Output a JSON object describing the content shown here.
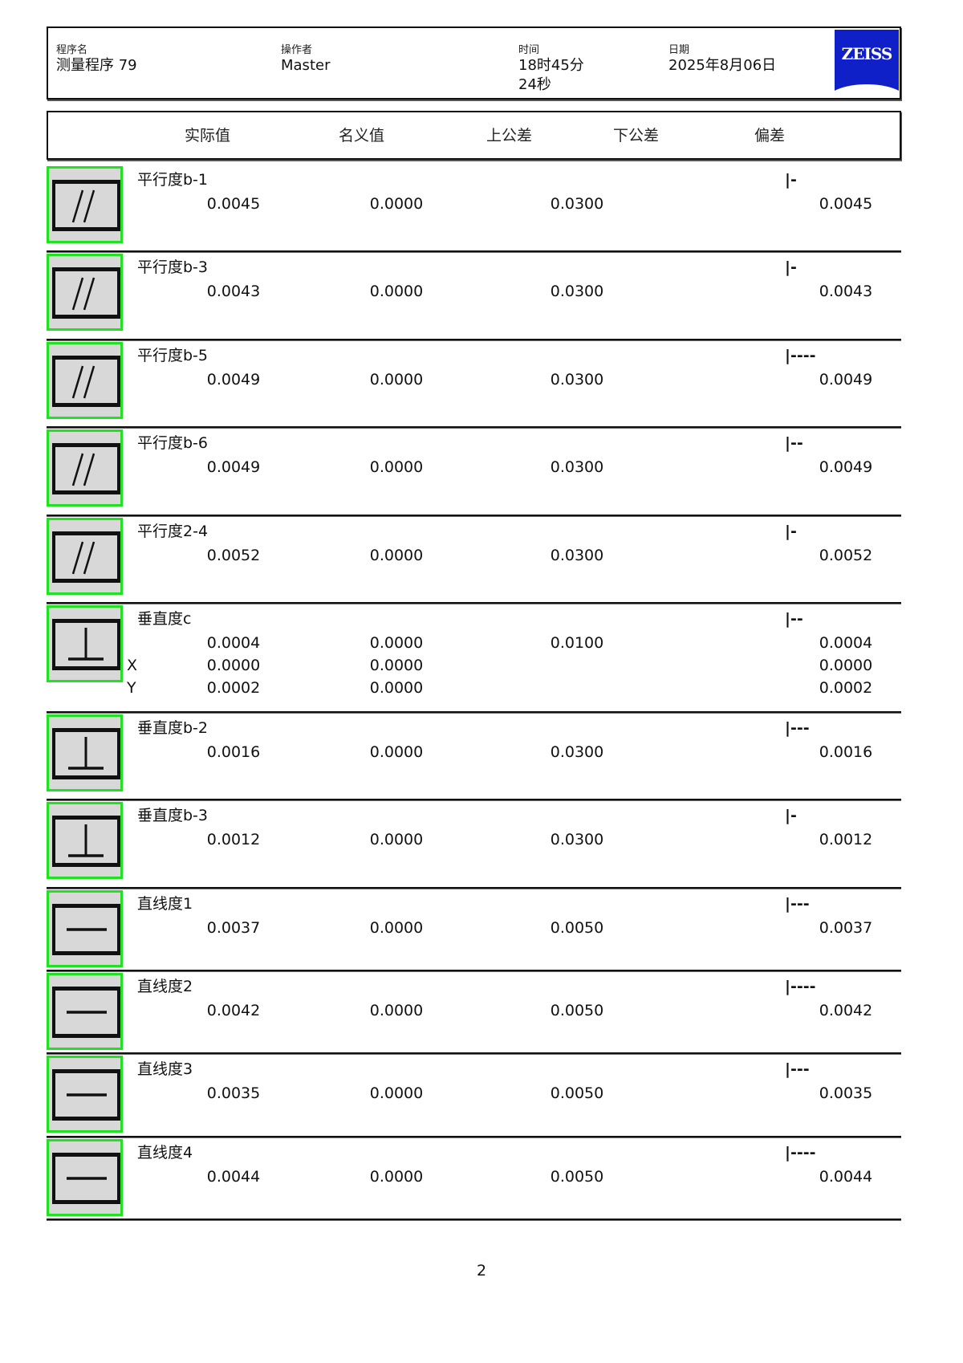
{
  "header": {
    "program": {
      "label": "程序名",
      "value": "测量程序 79"
    },
    "operator": {
      "label": "操作者",
      "value": "Master"
    },
    "time": {
      "label": "时间",
      "value_line1": "18时45分",
      "value_line2": "24秒"
    },
    "date": {
      "label": "日期",
      "value": "2025年8月06日"
    },
    "logo": "ZEISS",
    "logo_color": "#1020c8"
  },
  "columns": [
    "实际值",
    "名义值",
    "上公差",
    "下公差",
    "偏差"
  ],
  "rows": [
    {
      "icon": "parallelism",
      "name": "平行度b-1",
      "bar": "|-",
      "actual": "0.0045",
      "nominal": "0.0000",
      "upper": "0.0300",
      "deviation": "0.0045"
    },
    {
      "icon": "parallelism",
      "name": "平行度b-3",
      "bar": "|-",
      "actual": "0.0043",
      "nominal": "0.0000",
      "upper": "0.0300",
      "deviation": "0.0043"
    },
    {
      "icon": "parallelism",
      "name": "平行度b-5",
      "bar": "|----",
      "actual": "0.0049",
      "nominal": "0.0000",
      "upper": "0.0300",
      "deviation": "0.0049"
    },
    {
      "icon": "parallelism",
      "name": "平行度b-6",
      "bar": "|--",
      "actual": "0.0049",
      "nominal": "0.0000",
      "upper": "0.0300",
      "deviation": "0.0049"
    },
    {
      "icon": "parallelism",
      "name": "平行度2-4",
      "bar": "|-",
      "actual": "0.0052",
      "nominal": "0.0000",
      "upper": "0.0300",
      "deviation": "0.0052"
    },
    {
      "icon": "perpendicularity",
      "name": "垂直度c",
      "bar": "|--",
      "actual": "0.0004",
      "nominal": "0.0000",
      "upper": "0.0100",
      "deviation": "0.0004",
      "sub": [
        {
          "axis": "X",
          "actual": "0.0000",
          "nominal": "0.0000",
          "deviation": "0.0000"
        },
        {
          "axis": "Y",
          "actual": "0.0002",
          "nominal": "0.0000",
          "deviation": "0.0002"
        }
      ]
    },
    {
      "icon": "perpendicularity",
      "name": "垂直度b-2",
      "bar": "|---",
      "actual": "0.0016",
      "nominal": "0.0000",
      "upper": "0.0300",
      "deviation": "0.0016"
    },
    {
      "icon": "perpendicularity",
      "name": "垂直度b-3",
      "bar": "|-",
      "actual": "0.0012",
      "nominal": "0.0000",
      "upper": "0.0300",
      "deviation": "0.0012"
    },
    {
      "icon": "straightness",
      "name": "直线度1",
      "bar": "|---",
      "actual": "0.0037",
      "nominal": "0.0000",
      "upper": "0.0050",
      "deviation": "0.0037"
    },
    {
      "icon": "straightness",
      "name": "直线度2",
      "bar": "|----",
      "actual": "0.0042",
      "nominal": "0.0000",
      "upper": "0.0050",
      "deviation": "0.0042"
    },
    {
      "icon": "straightness",
      "name": "直线度3",
      "bar": "|---",
      "actual": "0.0035",
      "nominal": "0.0000",
      "upper": "0.0050",
      "deviation": "0.0035"
    },
    {
      "icon": "straightness",
      "name": "直线度4",
      "bar": "|----",
      "actual": "0.0044",
      "nominal": "0.0000",
      "upper": "0.0050",
      "deviation": "0.0044"
    }
  ],
  "icon_border_color": "#22e022",
  "page_number": "2"
}
